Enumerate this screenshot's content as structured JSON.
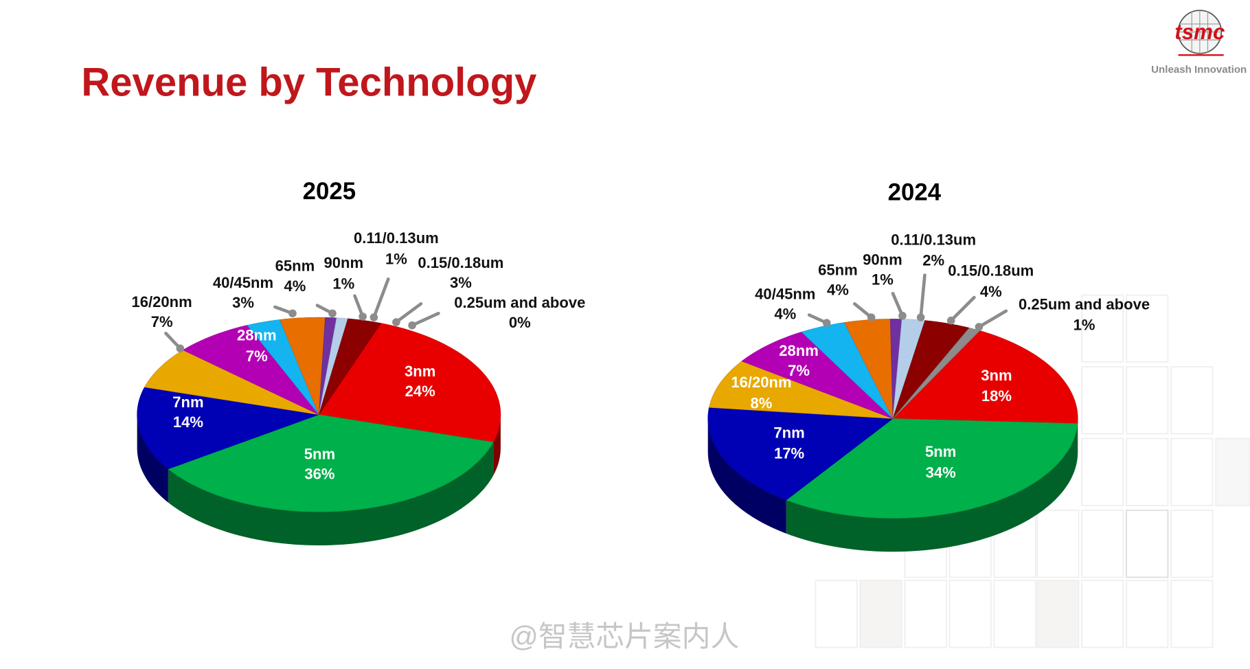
{
  "header": {
    "title": "Revenue by Technology",
    "logo": "tsmc",
    "tagline": "Unleash Innovation"
  },
  "watermark": "@智慧芯片案内人",
  "chart_data": [
    {
      "type": "pie",
      "title": "2025",
      "categories": [
        "3nm",
        "5nm",
        "7nm",
        "16/20nm",
        "28nm",
        "40/45nm",
        "65nm",
        "90nm",
        "0.11/0.13um",
        "0.15/0.18um",
        "0.25um and above"
      ],
      "values": [
        24,
        36,
        14,
        7,
        7,
        3,
        4,
        1,
        1,
        3,
        0
      ],
      "value_labels": [
        "24%",
        "36%",
        "14%",
        "7%",
        "7%",
        "3%",
        "4%",
        "1%",
        "1%",
        "3%",
        "0%"
      ],
      "colors": [
        "#e80000",
        "#00b04a",
        "#0000b4",
        "#e8a800",
        "#b400b4",
        "#14b4f0",
        "#e86e00",
        "#7030a0",
        "#b4cde8",
        "#8c0000",
        "#8c8c8c"
      ]
    },
    {
      "type": "pie",
      "title": "2024",
      "categories": [
        "3nm",
        "5nm",
        "7nm",
        "16/20nm",
        "28nm",
        "40/45nm",
        "65nm",
        "90nm",
        "0.11/0.13um",
        "0.15/0.18um",
        "0.25um and above"
      ],
      "values": [
        18,
        34,
        17,
        8,
        7,
        4,
        4,
        1,
        2,
        4,
        1
      ],
      "value_labels": [
        "18%",
        "34%",
        "17%",
        "8%",
        "7%",
        "4%",
        "4%",
        "1%",
        "2%",
        "4%",
        "1%"
      ],
      "colors": [
        "#e80000",
        "#00b04a",
        "#0000b4",
        "#e8a800",
        "#b400b4",
        "#14b4f0",
        "#e86e00",
        "#7030a0",
        "#b4cde8",
        "#8c0000",
        "#8c8c8c"
      ]
    }
  ]
}
